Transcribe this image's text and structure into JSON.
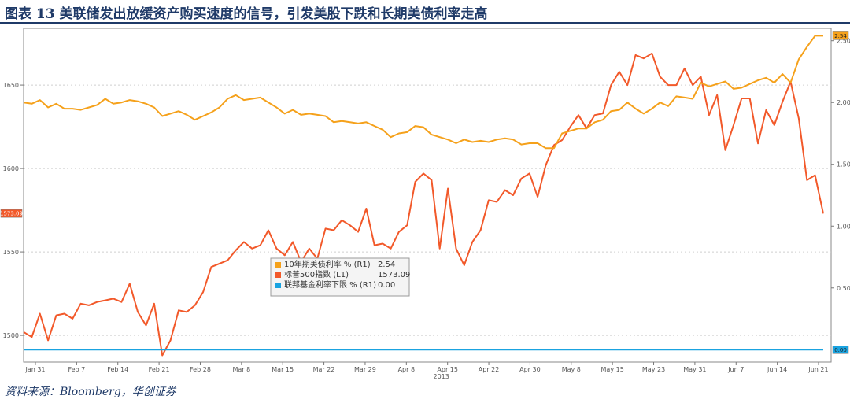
{
  "figure": {
    "title": "图表 13  美联储发出放缓资产购买速度的信号，引发美股下跌和长期美债利率走高",
    "source": "资料来源：Bloomberg，华创证券"
  },
  "colors": {
    "yield": "#f5a11b",
    "spx": "#f2592a",
    "fed": "#1aa3e0",
    "title": "#1f3a68"
  },
  "chart_data": {
    "type": "line",
    "title": "",
    "y_left": {
      "range": [
        1484,
        1684
      ],
      "ticks": [
        1500,
        1550,
        1600,
        1650
      ]
    },
    "y_right": {
      "range": [
        -0.1,
        2.6
      ],
      "ticks": [
        "0.50",
        "1.00",
        "1.50",
        "2.00",
        "2.50"
      ]
    },
    "x_ticks": [
      "Jan 31",
      "Feb 7",
      "Feb 14",
      "Feb 21",
      "Feb 28",
      "Mar 8",
      "Mar 15",
      "Mar 22",
      "Mar 29",
      "Apr 8",
      "Apr 15",
      "Apr 22",
      "Apr 30",
      "May 8",
      "May 15",
      "May 23",
      "May 31",
      "Jun 7",
      "Jun 14",
      "Jun 21"
    ],
    "x_year": "2013",
    "legend": {
      "position": "center",
      "entries": [
        {
          "name": "10年期美债利率 % (R1)",
          "value": "2.54"
        },
        {
          "name": "标普500指数 (L1)",
          "value": "1573.09"
        },
        {
          "name": "联邦基金利率下限 % (R1)",
          "value": "0.00"
        }
      ]
    },
    "last_value_flags": {
      "spx": "1573.09",
      "yield": "2.54",
      "fed": "0.00"
    },
    "series": [
      {
        "name": "标普500指数 (L1)",
        "axis": "left",
        "values": [
          1502,
          1499,
          1513,
          1497,
          1512,
          1513,
          1510,
          1519,
          1518,
          1520,
          1521,
          1522,
          1520,
          1531,
          1514,
          1506,
          1519,
          1488,
          1497,
          1515,
          1514,
          1518,
          1526,
          1541,
          1543,
          1545,
          1551,
          1556,
          1552,
          1554,
          1563,
          1552,
          1548,
          1556,
          1544,
          1552,
          1546,
          1564,
          1563,
          1569,
          1566,
          1562,
          1576,
          1554,
          1555,
          1552,
          1562,
          1566,
          1592,
          1597,
          1593,
          1552,
          1588,
          1552,
          1542,
          1556,
          1563,
          1581,
          1580,
          1587,
          1584,
          1594,
          1597,
          1583,
          1602,
          1614,
          1617,
          1625,
          1632,
          1624,
          1632,
          1633,
          1650,
          1658,
          1650,
          1668,
          1666,
          1669,
          1655,
          1650,
          1650,
          1660,
          1650,
          1655,
          1632,
          1644,
          1611,
          1626,
          1642,
          1642,
          1615,
          1635,
          1626,
          1640,
          1652,
          1630,
          1593,
          1596,
          1573
        ]
      },
      {
        "name": "10年期美债利率 % (R1)",
        "axis": "right",
        "values": [
          2.0,
          1.99,
          2.02,
          1.96,
          1.99,
          1.95,
          1.95,
          1.94,
          1.96,
          1.98,
          2.03,
          1.99,
          2.0,
          2.02,
          2.01,
          1.99,
          1.96,
          1.89,
          1.91,
          1.93,
          1.9,
          1.86,
          1.89,
          1.92,
          1.96,
          2.03,
          2.06,
          2.02,
          2.03,
          2.04,
          2.0,
          1.96,
          1.91,
          1.94,
          1.9,
          1.91,
          1.9,
          1.89,
          1.84,
          1.85,
          1.84,
          1.83,
          1.84,
          1.81,
          1.78,
          1.72,
          1.75,
          1.76,
          1.81,
          1.8,
          1.74,
          1.72,
          1.7,
          1.67,
          1.7,
          1.68,
          1.69,
          1.68,
          1.7,
          1.71,
          1.7,
          1.66,
          1.67,
          1.67,
          1.63,
          1.63,
          1.75,
          1.77,
          1.79,
          1.79,
          1.84,
          1.86,
          1.93,
          1.94,
          2.0,
          1.95,
          1.91,
          1.95,
          2.0,
          1.97,
          2.05,
          2.04,
          2.03,
          2.16,
          2.13,
          2.15,
          2.17,
          2.11,
          2.12,
          2.15,
          2.18,
          2.2,
          2.16,
          2.23,
          2.16,
          2.35,
          2.45,
          2.54,
          2.54
        ]
      },
      {
        "name": "联邦基金利率下限 % (R1)",
        "axis": "right",
        "values": [
          0.0,
          0.0
        ]
      }
    ]
  }
}
